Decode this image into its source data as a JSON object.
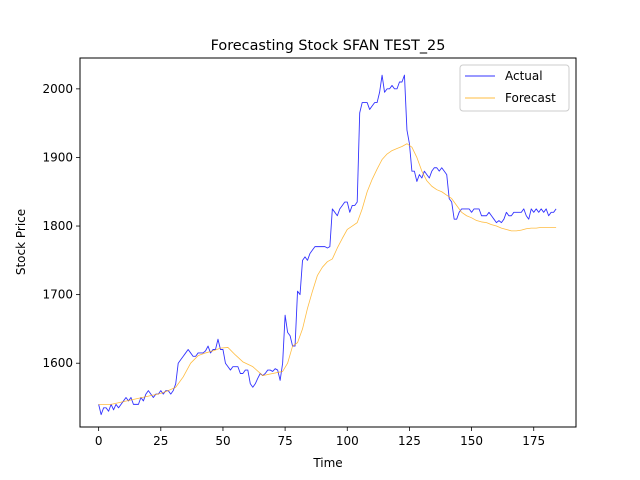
{
  "chart_data": {
    "type": "line",
    "title": "Forecasting Stock SFAN TEST_25",
    "xlabel": "Time",
    "ylabel": "Stock Price",
    "xlim": [
      -7.5,
      192
    ],
    "ylim": [
      1507,
      2045
    ],
    "xticks": [
      0,
      25,
      50,
      75,
      100,
      125,
      150,
      175
    ],
    "yticks": [
      1600,
      1700,
      1800,
      1900,
      2000
    ],
    "grid": false,
    "legend_position": "upper right",
    "series": [
      {
        "name": "Actual",
        "color": "#0000ff",
        "points": [
          [
            0,
            1540
          ],
          [
            1,
            1525
          ],
          [
            2,
            1535
          ],
          [
            3,
            1535
          ],
          [
            4,
            1530
          ],
          [
            5,
            1540
          ],
          [
            6,
            1532
          ],
          [
            7,
            1540
          ],
          [
            8,
            1535
          ],
          [
            9,
            1540
          ],
          [
            10,
            1545
          ],
          [
            11,
            1550
          ],
          [
            12,
            1545
          ],
          [
            13,
            1550
          ],
          [
            14,
            1540
          ],
          [
            15,
            1540
          ],
          [
            16,
            1540
          ],
          [
            17,
            1550
          ],
          [
            18,
            1545
          ],
          [
            19,
            1555
          ],
          [
            20,
            1560
          ],
          [
            21,
            1555
          ],
          [
            22,
            1550
          ],
          [
            23,
            1555
          ],
          [
            24,
            1555
          ],
          [
            25,
            1560
          ],
          [
            26,
            1555
          ],
          [
            27,
            1560
          ],
          [
            28,
            1560
          ],
          [
            29,
            1555
          ],
          [
            30,
            1560
          ],
          [
            31,
            1570
          ],
          [
            32,
            1600
          ],
          [
            33,
            1605
          ],
          [
            34,
            1610
          ],
          [
            35,
            1615
          ],
          [
            36,
            1620
          ],
          [
            37,
            1615
          ],
          [
            38,
            1610
          ],
          [
            39,
            1610
          ],
          [
            40,
            1615
          ],
          [
            41,
            1615
          ],
          [
            42,
            1615
          ],
          [
            43,
            1618
          ],
          [
            44,
            1625
          ],
          [
            45,
            1615
          ],
          [
            46,
            1620
          ],
          [
            47,
            1620
          ],
          [
            48,
            1635
          ],
          [
            49,
            1620
          ],
          [
            50,
            1620
          ],
          [
            51,
            1600
          ],
          [
            52,
            1595
          ],
          [
            53,
            1590
          ],
          [
            54,
            1595
          ],
          [
            55,
            1595
          ],
          [
            56,
            1595
          ],
          [
            57,
            1585
          ],
          [
            58,
            1585
          ],
          [
            59,
            1590
          ],
          [
            60,
            1590
          ],
          [
            61,
            1570
          ],
          [
            62,
            1565
          ],
          [
            63,
            1570
          ],
          [
            64,
            1578
          ],
          [
            65,
            1585
          ],
          [
            66,
            1582
          ],
          [
            67,
            1585
          ],
          [
            68,
            1590
          ],
          [
            69,
            1590
          ],
          [
            70,
            1588
          ],
          [
            71,
            1592
          ],
          [
            72,
            1590
          ],
          [
            73,
            1575
          ],
          [
            74,
            1600
          ],
          [
            75,
            1670
          ],
          [
            76,
            1645
          ],
          [
            77,
            1640
          ],
          [
            78,
            1625
          ],
          [
            79,
            1625
          ],
          [
            80,
            1705
          ],
          [
            81,
            1700
          ],
          [
            82,
            1750
          ],
          [
            83,
            1755
          ],
          [
            84,
            1750
          ],
          [
            85,
            1760
          ],
          [
            86,
            1765
          ],
          [
            87,
            1770
          ],
          [
            88,
            1770
          ],
          [
            89,
            1770
          ],
          [
            90,
            1770
          ],
          [
            91,
            1770
          ],
          [
            92,
            1768
          ],
          [
            93,
            1770
          ],
          [
            94,
            1825
          ],
          [
            95,
            1820
          ],
          [
            96,
            1815
          ],
          [
            97,
            1825
          ],
          [
            98,
            1830
          ],
          [
            99,
            1835
          ],
          [
            100,
            1835
          ],
          [
            101,
            1820
          ],
          [
            102,
            1830
          ],
          [
            103,
            1830
          ],
          [
            104,
            1835
          ],
          [
            105,
            1965
          ],
          [
            106,
            1980
          ],
          [
            107,
            1980
          ],
          [
            108,
            1980
          ],
          [
            109,
            1970
          ],
          [
            110,
            1975
          ],
          [
            111,
            1980
          ],
          [
            112,
            1980
          ],
          [
            113,
            1995
          ],
          [
            114,
            2020
          ],
          [
            115,
            1995
          ],
          [
            116,
            2000
          ],
          [
            117,
            2000
          ],
          [
            118,
            2005
          ],
          [
            119,
            2000
          ],
          [
            120,
            2000
          ],
          [
            121,
            2010
          ],
          [
            122,
            2010
          ],
          [
            123,
            2020
          ],
          [
            124,
            1940
          ],
          [
            125,
            1920
          ],
          [
            126,
            1880
          ],
          [
            127,
            1880
          ],
          [
            128,
            1865
          ],
          [
            129,
            1875
          ],
          [
            130,
            1870
          ],
          [
            131,
            1880
          ],
          [
            132,
            1875
          ],
          [
            133,
            1870
          ],
          [
            134,
            1880
          ],
          [
            135,
            1885
          ],
          [
            136,
            1885
          ],
          [
            137,
            1880
          ],
          [
            138,
            1885
          ],
          [
            139,
            1880
          ],
          [
            140,
            1875
          ],
          [
            141,
            1840
          ],
          [
            142,
            1835
          ],
          [
            143,
            1810
          ],
          [
            144,
            1810
          ],
          [
            145,
            1820
          ],
          [
            146,
            1825
          ],
          [
            147,
            1825
          ],
          [
            148,
            1825
          ],
          [
            149,
            1825
          ],
          [
            150,
            1820
          ],
          [
            151,
            1825
          ],
          [
            152,
            1825
          ],
          [
            153,
            1825
          ],
          [
            154,
            1815
          ],
          [
            155,
            1815
          ],
          [
            156,
            1815
          ],
          [
            157,
            1820
          ],
          [
            158,
            1815
          ],
          [
            159,
            1810
          ],
          [
            160,
            1805
          ],
          [
            161,
            1808
          ],
          [
            162,
            1805
          ],
          [
            163,
            1810
          ],
          [
            164,
            1820
          ],
          [
            165,
            1815
          ],
          [
            166,
            1815
          ],
          [
            167,
            1820
          ],
          [
            168,
            1820
          ],
          [
            169,
            1820
          ],
          [
            170,
            1820
          ],
          [
            171,
            1825
          ],
          [
            172,
            1815
          ],
          [
            173,
            1810
          ],
          [
            174,
            1825
          ],
          [
            175,
            1820
          ],
          [
            176,
            1825
          ],
          [
            177,
            1820
          ],
          [
            178,
            1825
          ],
          [
            179,
            1820
          ],
          [
            180,
            1825
          ],
          [
            181,
            1815
          ],
          [
            182,
            1820
          ],
          [
            183,
            1820
          ],
          [
            184,
            1825
          ]
        ]
      },
      {
        "name": "Forecast",
        "color": "#ffa500",
        "points": [
          [
            0,
            1540
          ],
          [
            5,
            1540
          ],
          [
            10,
            1544
          ],
          [
            15,
            1548
          ],
          [
            20,
            1552
          ],
          [
            25,
            1556
          ],
          [
            28,
            1560
          ],
          [
            31,
            1565
          ],
          [
            34,
            1580
          ],
          [
            37,
            1600
          ],
          [
            40,
            1611
          ],
          [
            43,
            1615
          ],
          [
            46,
            1618
          ],
          [
            49,
            1622
          ],
          [
            52,
            1623
          ],
          [
            55,
            1612
          ],
          [
            58,
            1602
          ],
          [
            62,
            1595
          ],
          [
            66,
            1582
          ],
          [
            70,
            1585
          ],
          [
            74,
            1588
          ],
          [
            76,
            1600
          ],
          [
            78,
            1625
          ],
          [
            80,
            1630
          ],
          [
            82,
            1650
          ],
          [
            84,
            1680
          ],
          [
            86,
            1705
          ],
          [
            88,
            1728
          ],
          [
            90,
            1740
          ],
          [
            92,
            1748
          ],
          [
            94,
            1752
          ],
          [
            96,
            1768
          ],
          [
            98,
            1782
          ],
          [
            100,
            1795
          ],
          [
            102,
            1800
          ],
          [
            104,
            1805
          ],
          [
            106,
            1825
          ],
          [
            108,
            1850
          ],
          [
            110,
            1868
          ],
          [
            112,
            1883
          ],
          [
            114,
            1897
          ],
          [
            116,
            1905
          ],
          [
            118,
            1910
          ],
          [
            120,
            1913
          ],
          [
            122,
            1916
          ],
          [
            124,
            1920
          ],
          [
            126,
            1915
          ],
          [
            128,
            1900
          ],
          [
            130,
            1880
          ],
          [
            132,
            1866
          ],
          [
            134,
            1858
          ],
          [
            136,
            1853
          ],
          [
            138,
            1850
          ],
          [
            140,
            1845
          ],
          [
            142,
            1840
          ],
          [
            144,
            1830
          ],
          [
            146,
            1820
          ],
          [
            148,
            1815
          ],
          [
            150,
            1812
          ],
          [
            152,
            1808
          ],
          [
            154,
            1806
          ],
          [
            156,
            1805
          ],
          [
            158,
            1802
          ],
          [
            160,
            1800
          ],
          [
            162,
            1797
          ],
          [
            164,
            1795
          ],
          [
            166,
            1793
          ],
          [
            168,
            1793
          ],
          [
            170,
            1794
          ],
          [
            172,
            1796
          ],
          [
            174,
            1797
          ],
          [
            176,
            1797
          ],
          [
            178,
            1798
          ],
          [
            180,
            1798
          ],
          [
            182,
            1798
          ],
          [
            184,
            1798
          ]
        ]
      }
    ]
  }
}
